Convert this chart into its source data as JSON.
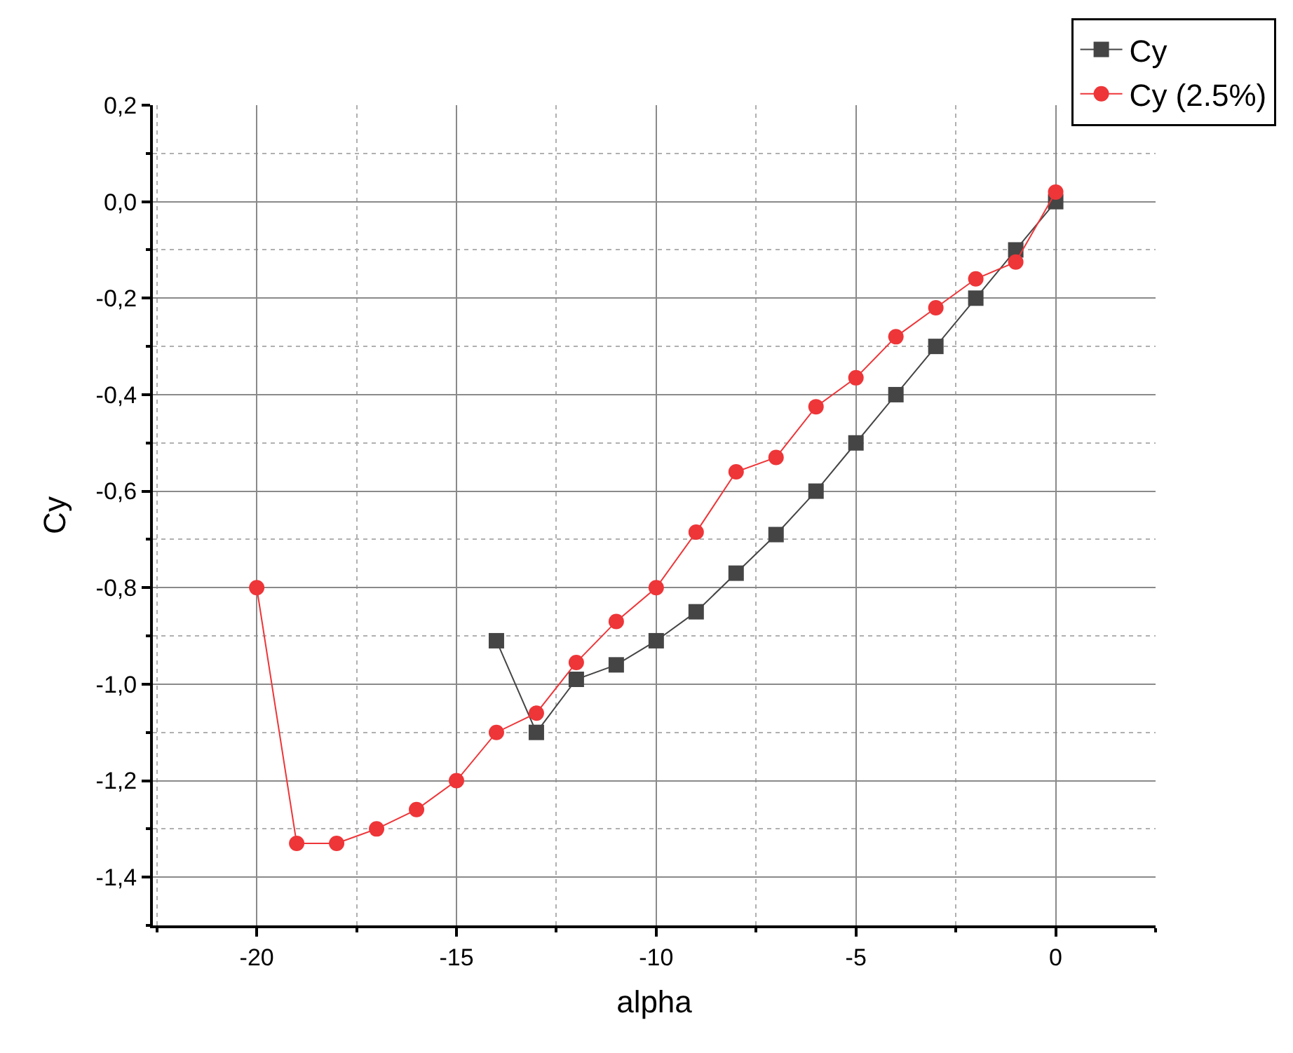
{
  "chart_data": {
    "type": "line",
    "xlabel": "alpha",
    "ylabel": "Cy",
    "series": [
      {
        "name": "Cy",
        "color": "#454545",
        "marker": "square",
        "x": [
          -14,
          -13,
          -12,
          -11,
          -10,
          -9,
          -8,
          -7,
          -6,
          -5,
          -4,
          -3,
          -2,
          -1,
          0
        ],
        "values": [
          -0.91,
          -1.1,
          -0.99,
          -0.96,
          -0.91,
          -0.85,
          -0.77,
          -0.69,
          -0.6,
          -0.5,
          -0.4,
          -0.3,
          -0.2,
          -0.1,
          0.0
        ]
      },
      {
        "name": "Cy (2.5%)",
        "color": "#ee3538",
        "marker": "circle",
        "x": [
          -20,
          -19,
          -18,
          -17,
          -16,
          -15,
          -14,
          -13,
          -12,
          -11,
          -10,
          -9,
          -8,
          -7,
          -6,
          -5,
          -4,
          -3,
          -2,
          -1,
          0
        ],
        "values": [
          -0.8,
          -1.33,
          -1.33,
          -1.3,
          -1.26,
          -1.2,
          -1.1,
          -1.06,
          -0.955,
          -0.87,
          -0.8,
          -0.685,
          -0.56,
          -0.53,
          -0.425,
          -0.365,
          -0.28,
          -0.22,
          -0.16,
          -0.125,
          0.02
        ]
      }
    ],
    "xlim": [
      -22.6,
      2.5
    ],
    "xticks": [
      -20,
      -15,
      -10,
      -5,
      0
    ],
    "ylim": [
      -1.5,
      0.2
    ],
    "yticks": [
      {
        "value": 0.2,
        "label": "0,2"
      },
      {
        "value": 0.0,
        "label": "0,0"
      },
      {
        "value": -0.2,
        "label": "-0,2"
      },
      {
        "value": -0.4,
        "label": "-0,4"
      },
      {
        "value": -0.6,
        "label": "-0,6"
      },
      {
        "value": -0.8,
        "label": "-0,8"
      },
      {
        "value": -1.0,
        "label": "-1,0"
      },
      {
        "value": -1.2,
        "label": "-1,2"
      },
      {
        "value": -1.4,
        "label": "-1,4"
      }
    ],
    "grid": true,
    "legend": "top right",
    "line_style": "solid"
  }
}
